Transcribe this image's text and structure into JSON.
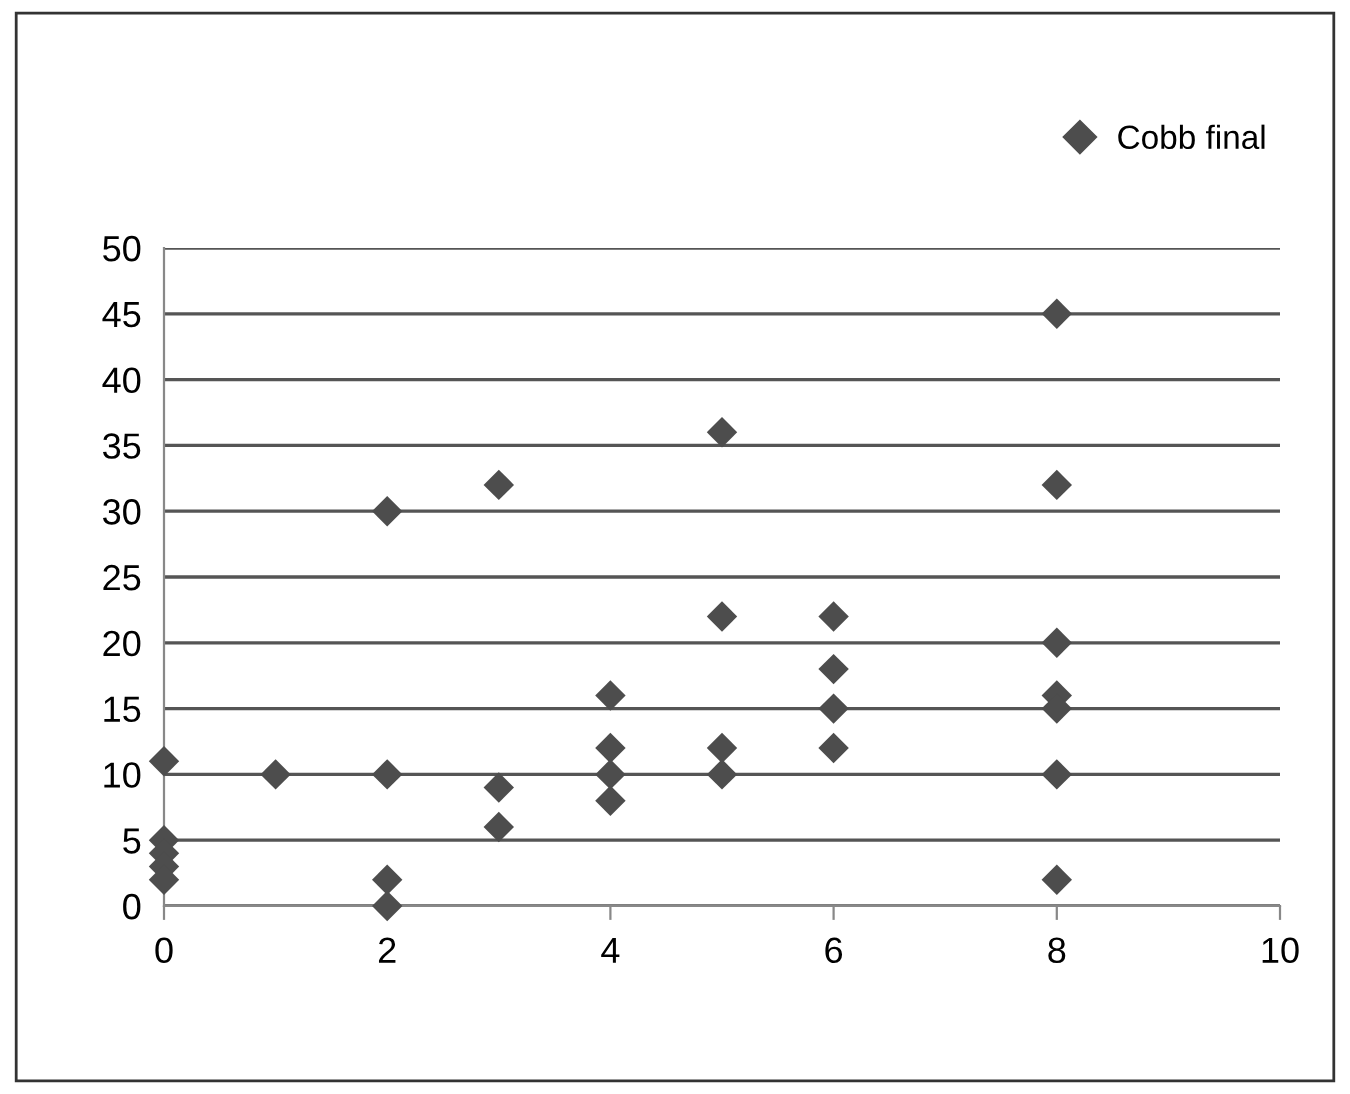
{
  "chart_data": {
    "type": "scatter",
    "series": [
      {
        "name": "Cobb final",
        "color": "#4d4d4d",
        "x": [
          0,
          0,
          0,
          0,
          0,
          1,
          2,
          2,
          2,
          2,
          3,
          3,
          3,
          4,
          4,
          4,
          4,
          5,
          5,
          5,
          5,
          6,
          6,
          6,
          6,
          8,
          8,
          8,
          8,
          8,
          8,
          8
        ],
        "values": [
          11,
          5,
          4,
          3,
          2,
          10,
          30,
          10,
          2,
          0,
          32,
          9,
          6,
          16,
          12,
          10,
          8,
          36,
          22,
          12,
          10,
          22,
          18,
          15,
          12,
          45,
          32,
          20,
          16,
          15,
          10,
          2
        ]
      }
    ],
    "marker": "diamond",
    "xlim": [
      0,
      10
    ],
    "xticks": [
      0,
      2,
      4,
      6,
      8,
      10
    ],
    "ylim": [
      0,
      50
    ],
    "yticks": [
      0,
      5,
      10,
      15,
      20,
      25,
      30,
      35,
      40,
      45,
      50
    ],
    "grid": "y",
    "legend": "top right"
  }
}
